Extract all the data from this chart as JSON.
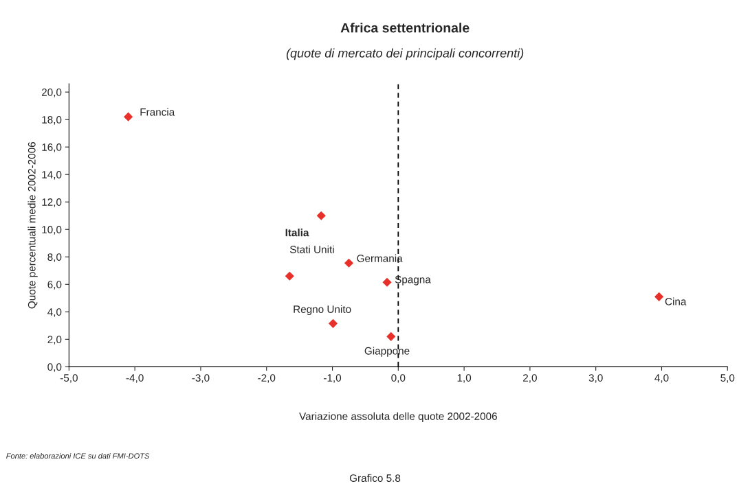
{
  "chart_data": {
    "type": "scatter",
    "title": "Africa settentrionale",
    "subtitle": "(quote di mercato dei principali concorrenti)",
    "xlabel": "Variazione assoluta delle quote 2002-2006",
    "ylabel": "Quote percentuali medie 2002-2006",
    "series": [
      {
        "color": "#e8302a",
        "x": [
          -4.1,
          -1.17,
          -1.65,
          -0.75,
          -0.17,
          -0.99,
          -0.11,
          3.96
        ],
        "values": [
          18.2,
          11.0,
          6.6,
          7.55,
          6.15,
          3.15,
          2.2,
          5.1
        ]
      }
    ],
    "marker": "diamond",
    "grid": false,
    "xlim": [
      -5,
      5
    ],
    "ylim": [
      0,
      20.6
    ],
    "xticks": [
      {
        "value": -5,
        "label": "-5,0"
      },
      {
        "value": -4,
        "label": "-4,0"
      },
      {
        "value": -3,
        "label": "-3,0"
      },
      {
        "value": -2,
        "label": "-2,0"
      },
      {
        "value": -1,
        "label": "-1,0"
      },
      {
        "value": 0,
        "label": "0,0"
      },
      {
        "value": 1,
        "label": "1,0"
      },
      {
        "value": 2,
        "label": "2,0"
      },
      {
        "value": 3,
        "label": "3,0"
      },
      {
        "value": 4,
        "label": "4,0"
      },
      {
        "value": 5,
        "label": "5,0"
      }
    ],
    "yticks": [
      {
        "value": 0,
        "label": "0,0"
      },
      {
        "value": 2,
        "label": "2,0"
      },
      {
        "value": 4,
        "label": "4,0"
      },
      {
        "value": 6,
        "label": "6,0"
      },
      {
        "value": 8,
        "label": "8,0"
      },
      {
        "value": 10,
        "label": "10,0"
      },
      {
        "value": 12,
        "label": "12,0"
      },
      {
        "value": 14,
        "label": "14,0"
      },
      {
        "value": 16,
        "label": "16,0"
      },
      {
        "value": 18,
        "label": "18,0"
      },
      {
        "value": 20,
        "label": "20,0"
      }
    ],
    "ref_lines": [
      {
        "axis": "x",
        "value": 0,
        "color": "#000000",
        "line_style": "dashed"
      }
    ],
    "annotations": [
      {
        "text": "Francia",
        "x": -4.1,
        "y": 18.2
      },
      "Italia",
      {
        "text": "Stati Uniti",
        "x": -1.65,
        "y": 6.6
      },
      {
        "text": "Germania",
        "x": -0.75,
        "y": 7.55
      },
      {
        "text": "Spagna",
        "x": -0.17,
        "y": 6.15
      },
      {
        "text": "Regno Unito",
        "x": -0.99,
        "y": 3.15
      },
      {
        "text": "Giappone",
        "x": -0.11,
        "y": 2.2
      },
      {
        "text": "Cina",
        "x": 3.96,
        "y": 5.1
      },
      "Fonte: elaborazioni ICE su dati FMI-DOTS",
      "Grafico 5.8"
    ]
  }
}
